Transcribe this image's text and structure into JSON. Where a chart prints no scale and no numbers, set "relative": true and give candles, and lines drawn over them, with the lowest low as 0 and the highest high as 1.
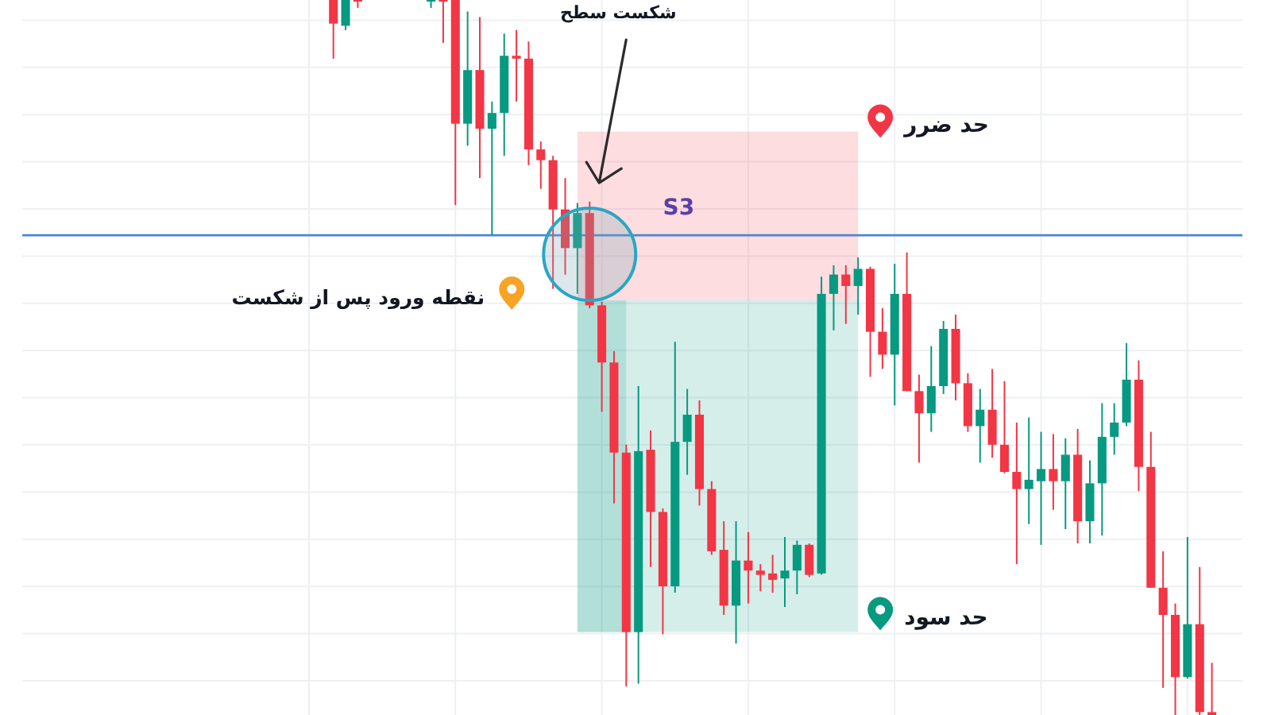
{
  "chart_data": {
    "type": "candlestick",
    "relative": true,
    "grid": true,
    "categories": [
      null,
      null,
      null,
      null,
      null,
      null,
      null,
      null,
      null,
      null,
      null,
      null,
      null,
      null,
      null,
      null,
      null,
      null,
      null,
      null,
      null,
      null,
      null,
      null,
      null,
      null,
      null,
      null,
      null,
      null,
      null,
      null,
      null,
      null,
      null,
      null,
      null,
      null,
      null,
      null,
      null,
      null,
      null,
      null,
      null,
      null,
      null,
      null,
      null,
      null,
      null,
      null,
      null,
      null,
      null,
      null,
      null,
      null,
      null,
      null,
      null,
      null,
      null,
      null,
      null,
      null,
      null,
      null,
      null,
      null,
      null,
      null,
      null,
      null,
      null,
      null,
      null,
      null,
      null,
      null,
      null,
      null,
      null,
      null,
      null,
      null,
      null,
      null,
      null,
      null,
      null,
      null,
      null,
      null,
      null,
      null,
      null,
      null,
      null,
      null
    ],
    "ohlc": [
      null,
      null,
      null,
      null,
      null,
      null,
      null,
      null,
      null,
      null,
      null,
      null,
      null,
      null,
      null,
      null,
      null,
      null,
      null,
      null,
      null,
      null,
      null,
      null,
      null,
      [
        1,
        1,
        0.918,
        0.967
      ],
      [
        0.964,
        1,
        0.958,
        1
      ],
      [
        1,
        1,
        0.989,
        0.998
      ],
      null,
      null,
      null,
      null,
      null,
      [
        0.998,
        1,
        0.989,
        1
      ],
      [
        1,
        1,
        0.94,
        0.998
      ],
      [
        1,
        1,
        0.713,
        0.827
      ],
      [
        0.827,
        0.984,
        0.796,
        0.902
      ],
      [
        0.902,
        0.976,
        0.751,
        0.82
      ],
      [
        0.82,
        0.858,
        0.671,
        0.842
      ],
      [
        0.842,
        0.953,
        0.782,
        0.922
      ],
      [
        0.922,
        0.958,
        0.858,
        0.918
      ],
      [
        0.918,
        0.942,
        0.769,
        0.791
      ],
      [
        0.791,
        0.802,
        0.736,
        0.776
      ],
      [
        0.776,
        0.782,
        0.596,
        0.707
      ],
      [
        0.707,
        0.751,
        0.616,
        0.653
      ],
      [
        0.653,
        0.716,
        0.589,
        0.702
      ],
      [
        0.702,
        0.718,
        0.569,
        0.573
      ],
      [
        0.573,
        0.578,
        0.424,
        0.493
      ],
      [
        0.493,
        0.509,
        0.296,
        0.367
      ],
      [
        0.367,
        0.378,
        0.04,
        0.116
      ],
      [
        0.116,
        0.46,
        0.044,
        0.369
      ],
      [
        0.371,
        0.398,
        0.207,
        0.284
      ],
      [
        0.284,
        0.289,
        0.113,
        0.18
      ],
      [
        0.18,
        0.522,
        0.171,
        0.382
      ],
      [
        0.382,
        0.456,
        0.336,
        0.42
      ],
      [
        0.42,
        0.44,
        0.293,
        0.316
      ],
      [
        0.316,
        0.327,
        0.224,
        0.229
      ],
      [
        0.231,
        0.271,
        0.14,
        0.153
      ],
      [
        0.153,
        0.271,
        0.1,
        0.216
      ],
      [
        0.216,
        0.256,
        0.156,
        0.202
      ],
      [
        0.202,
        0.211,
        0.173,
        0.196
      ],
      [
        0.198,
        0.224,
        0.171,
        0.189
      ],
      [
        0.191,
        0.249,
        0.151,
        0.202
      ],
      [
        0.202,
        0.244,
        0.169,
        0.238
      ],
      [
        0.238,
        0.24,
        0.193,
        0.196
      ],
      [
        0.198,
        0.613,
        0.196,
        0.589
      ],
      [
        0.589,
        0.629,
        0.538,
        0.616
      ],
      [
        0.616,
        0.629,
        0.547,
        0.6
      ],
      [
        0.6,
        0.64,
        0.56,
        0.624
      ],
      [
        0.624,
        0.627,
        0.473,
        0.536
      ],
      [
        0.536,
        0.569,
        0.484,
        0.504
      ],
      [
        0.504,
        0.631,
        0.433,
        0.589
      ],
      [
        0.589,
        0.647,
        0.453,
        0.453
      ],
      [
        0.453,
        0.476,
        0.353,
        0.422
      ],
      [
        0.422,
        0.516,
        0.396,
        0.46
      ],
      [
        0.46,
        0.551,
        0.449,
        0.54
      ],
      [
        0.54,
        0.56,
        0.44,
        0.464
      ],
      [
        0.464,
        0.478,
        0.396,
        0.404
      ],
      [
        0.404,
        0.456,
        0.353,
        0.427
      ],
      [
        0.427,
        0.484,
        0.36,
        0.378
      ],
      [
        0.378,
        0.467,
        0.338,
        0.34
      ],
      [
        0.34,
        0.409,
        0.211,
        0.316
      ],
      [
        0.316,
        0.416,
        0.267,
        0.329
      ],
      [
        0.327,
        0.396,
        0.238,
        0.344
      ],
      [
        0.344,
        0.393,
        0.287,
        0.327
      ],
      [
        0.327,
        0.387,
        0.26,
        0.364
      ],
      [
        0.364,
        0.4,
        0.24,
        0.271
      ],
      [
        0.271,
        0.356,
        0.24,
        0.324
      ],
      [
        0.324,
        0.436,
        0.251,
        0.389
      ],
      [
        0.389,
        0.436,
        0.364,
        0.409
      ],
      [
        0.409,
        0.52,
        0.404,
        0.469
      ],
      [
        0.469,
        0.496,
        0.313,
        0.347
      ],
      [
        0.347,
        0.396,
        0.178,
        0.178
      ],
      [
        0.178,
        0.229,
        0.038,
        0.14
      ],
      [
        0.14,
        0.156,
        0,
        0.053
      ],
      [
        0.053,
        0.249,
        0.051,
        0.127
      ],
      [
        0.127,
        0.207,
        0,
        0.004
      ],
      [
        0.004,
        0.073,
        0,
        0
      ],
      null,
      null
    ],
    "colors": [
      null,
      null,
      null,
      null,
      null,
      null,
      null,
      null,
      null,
      null,
      null,
      null,
      null,
      null,
      null,
      null,
      null,
      null,
      null,
      null,
      null,
      null,
      null,
      null,
      null,
      "#f23645",
      "#089981",
      "#f23645",
      null,
      null,
      null,
      null,
      null,
      "#089981",
      "#f23645",
      "#f23645",
      "#089981",
      "#f23645",
      "#089981",
      "#089981",
      "#f23645",
      "#f23645",
      "#f23645",
      "#f23645",
      "#f23645",
      "#089981",
      "#f23645",
      "#f23645",
      "#f23645",
      "#f23645",
      "#089981",
      "#f23645",
      "#f23645",
      "#089981",
      "#089981",
      "#f23645",
      "#f23645",
      "#f23645",
      "#089981",
      "#f23645",
      "#f23645",
      "#f23645",
      "#089981",
      "#089981",
      "#f23645",
      "#089981",
      "#089981",
      "#f23645",
      "#089981",
      "#f23645",
      "#f23645",
      "#089981",
      "#f23645",
      "#f23645",
      "#089981",
      "#089981",
      "#f23645",
      "#f23645",
      "#089981",
      "#f23645",
      "#f23645",
      "#f23645",
      "#089981",
      "#089981",
      "#f23645",
      "#089981",
      "#f23645",
      "#089981",
      "#089981",
      "#089981",
      "#089981",
      "#f23645",
      "#f23645",
      "#f23645",
      "#f23645",
      "#089981",
      "#f23645",
      "#f23645",
      null,
      null
    ],
    "ref_lines": [
      {
        "axis": "y",
        "value": 0.671,
        "label": "S3",
        "color": "#4a86d8"
      }
    ],
    "bands": [
      {
        "axis": "y",
        "from": 0.58,
        "to": 0.816,
        "label": "حد ضرر",
        "color": "#f23645"
      },
      {
        "axis": "y",
        "from": 0.116,
        "to": 0.58,
        "label": "حد سود",
        "color": "#089981"
      },
      {
        "axis": "y",
        "from": 0.116,
        "to": 0.58,
        "color": "#089981"
      }
    ],
    "annotations": [
      "شکست سطح",
      "نقطه ورود پس از شکست"
    ]
  }
}
